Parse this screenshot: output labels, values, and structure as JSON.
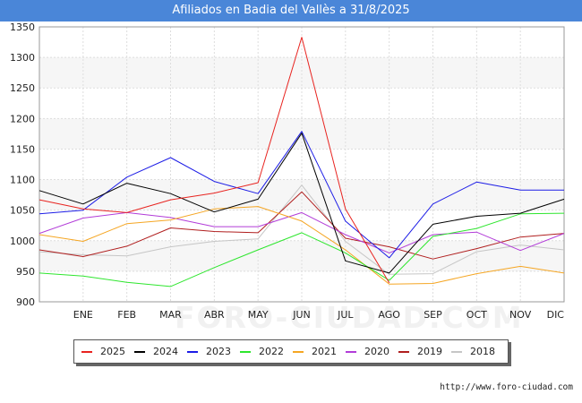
{
  "title": "Afiliados en Badia del Vallès a 31/8/2025",
  "watermark": "FORO-CIUDAD.COM",
  "footer": "http://www.foro-ciudad.com",
  "chart_data": {
    "type": "line",
    "title": "Afiliados en Badia del Vallès a 31/8/2025",
    "xlabel": "",
    "ylabel": "",
    "categories": [
      "",
      "ENE",
      "FEB",
      "MAR",
      "ABR",
      "MAY",
      "JUN",
      "JUL",
      "AGO",
      "SEP",
      "OCT",
      "NOV",
      "DIC"
    ],
    "ylim": [
      900,
      1350
    ],
    "yticks": [
      900,
      950,
      1000,
      1050,
      1100,
      1150,
      1200,
      1250,
      1300,
      1350
    ],
    "grid": true,
    "legend_position": "bottom",
    "series": [
      {
        "name": "2025",
        "color": "#e8231f",
        "values": [
          1067,
          1052,
          1046,
          1067,
          1078,
          1095,
          1333,
          1052,
          931,
          null,
          null,
          null,
          null
        ]
      },
      {
        "name": "2024",
        "color": "#000000",
        "values": [
          1082,
          1060,
          1094,
          1077,
          1047,
          1068,
          1176,
          967,
          947,
          1027,
          1040,
          1045,
          1068
        ]
      },
      {
        "name": "2023",
        "color": "#1c1ce6",
        "values": [
          1044,
          1050,
          1104,
          1136,
          1097,
          1077,
          1179,
          1032,
          972,
          1060,
          1096,
          1083,
          1083
        ]
      },
      {
        "name": "2022",
        "color": "#2ee62e",
        "values": [
          947,
          942,
          932,
          925,
          956,
          985,
          1013,
          980,
          935,
          1007,
          1020,
          1044,
          1045
        ]
      },
      {
        "name": "2021",
        "color": "#f5a623",
        "values": [
          1010,
          999,
          1028,
          1034,
          1052,
          1056,
          1032,
          985,
          929,
          930,
          946,
          958,
          947
        ]
      },
      {
        "name": "2020",
        "color": "#b23cd8",
        "values": [
          1012,
          1037,
          1046,
          1038,
          1023,
          1023,
          1046,
          1010,
          980,
          1010,
          1014,
          984,
          1012
        ]
      },
      {
        "name": "2019",
        "color": "#b01e1e",
        "values": [
          985,
          974,
          991,
          1021,
          1015,
          1013,
          1080,
          1004,
          990,
          970,
          987,
          1006,
          1012
        ]
      },
      {
        "name": "2018",
        "color": "#c6c6c6",
        "values": [
          982,
          977,
          975,
          990,
          999,
          1003,
          1091,
          999,
          945,
          946,
          982,
          993,
          985
        ]
      }
    ]
  }
}
